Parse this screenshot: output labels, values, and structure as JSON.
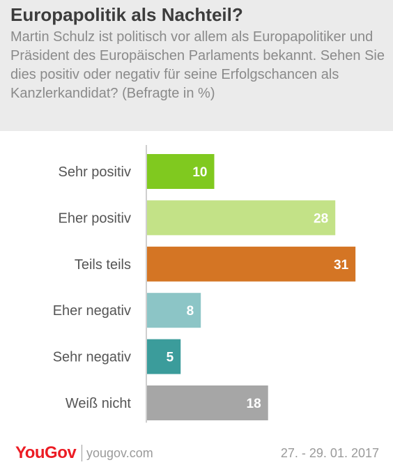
{
  "title": "Europapolitik als Nachteil?",
  "subtitle": "Martin Schulz ist politisch vor allem als Europapolitiker und Präsident des Europäischen Parlaments bekannt. Sehen Sie dies positiv oder negativ für seine Erfolgschancen als Kanzlerkandidat? (Befragte in %)",
  "footer": {
    "brand": "YouGov",
    "url": "yougov.com",
    "date": "27. - 29. 01. 2017"
  },
  "colors": {
    "header_bg": "#ebebeb",
    "brand_red": "#ec1c24"
  },
  "chart_data": {
    "type": "bar",
    "orientation": "horizontal",
    "categories": [
      "Sehr positiv",
      "Eher positiv",
      "Teils teils",
      "Eher negativ",
      "Sehr negativ",
      "Weiß nicht"
    ],
    "values": [
      10,
      28,
      31,
      8,
      5,
      18
    ],
    "colors": [
      "#80c91f",
      "#c3e287",
      "#d47524",
      "#8cc5c6",
      "#3b9c9b",
      "#a6a6a6"
    ],
    "title": "",
    "xlabel": "",
    "ylabel": "",
    "xlim": [
      0,
      34
    ],
    "grid": false,
    "data_labels": true
  }
}
